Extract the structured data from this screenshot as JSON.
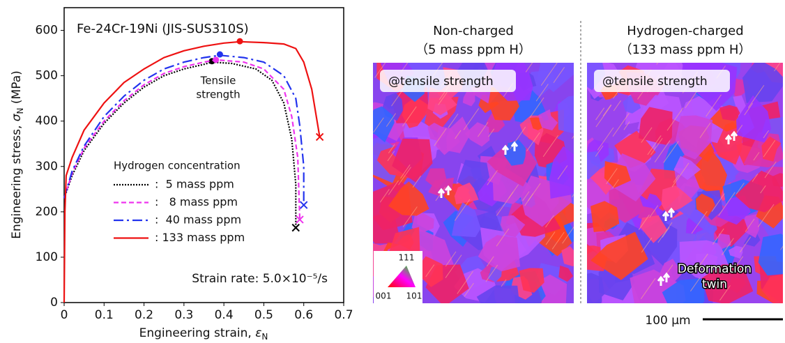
{
  "chart_data": {
    "type": "line",
    "title": "Fe-24Cr-19Ni (JIS-SUS310S)",
    "xlabel": [
      "Engineering strain, ",
      "ε",
      "N"
    ],
    "ylabel": [
      "Engineering stress, ",
      "σ",
      "N",
      " (MPa)"
    ],
    "xlim": [
      0,
      0.7
    ],
    "ylim": [
      0,
      650
    ],
    "xticks": [
      0,
      0.1,
      0.2,
      0.3,
      0.4,
      0.5,
      0.6,
      0.7
    ],
    "yticks": [
      0,
      100,
      200,
      300,
      400,
      500,
      600
    ],
    "legend_title": "Hydrogen concentration",
    "annotations": [
      "Tensile",
      "strength",
      "Strain rate: 5.0×10⁻⁵/s"
    ],
    "series": [
      {
        "name": ":  5 mass ppm",
        "color": "#000000",
        "dash": "2,2",
        "x": [
          0,
          0.02,
          0.05,
          0.1,
          0.15,
          0.2,
          0.25,
          0.3,
          0.35,
          0.37,
          0.42,
          0.48,
          0.52,
          0.55,
          0.57,
          0.58,
          0.58
        ],
        "values": [
          230,
          280,
          335,
          395,
          440,
          475,
          500,
          515,
          525,
          530,
          527,
          515,
          490,
          440,
          360,
          260,
          165
        ],
        "uts": [
          0.37,
          532
        ],
        "fracture": [
          0.58,
          165
        ]
      },
      {
        "name": ":   8 mass ppm",
        "color": "#ee33ee",
        "dash": "7,4",
        "x": [
          0,
          0.02,
          0.05,
          0.1,
          0.15,
          0.2,
          0.25,
          0.3,
          0.35,
          0.38,
          0.45,
          0.5,
          0.55,
          0.57,
          0.585,
          0.59
        ],
        "values": [
          230,
          285,
          340,
          400,
          445,
          480,
          505,
          520,
          530,
          535,
          530,
          515,
          470,
          410,
          320,
          183
        ],
        "uts": [
          0.38,
          535
        ],
        "fracture": [
          0.59,
          183
        ]
      },
      {
        "name": ":  40 mass ppm",
        "color": "#2233ee",
        "dash": "14,5,3,5",
        "x": [
          0,
          0.02,
          0.05,
          0.1,
          0.15,
          0.2,
          0.25,
          0.3,
          0.35,
          0.39,
          0.45,
          0.5,
          0.55,
          0.58,
          0.59,
          0.6,
          0.6
        ],
        "values": [
          230,
          290,
          345,
          410,
          455,
          490,
          515,
          530,
          540,
          545,
          540,
          530,
          500,
          450,
          390,
          300,
          215
        ],
        "uts": [
          0.39,
          547
        ],
        "fracture": [
          0.6,
          215
        ]
      },
      {
        "name": ": 133 mass ppm",
        "color": "#ee1111",
        "dash": "",
        "x": [
          0,
          0.002,
          0.005,
          0.02,
          0.05,
          0.1,
          0.15,
          0.2,
          0.25,
          0.3,
          0.35,
          0.4,
          0.44,
          0.5,
          0.55,
          0.58,
          0.6,
          0.62,
          0.64
        ],
        "values": [
          0,
          200,
          280,
          320,
          380,
          440,
          485,
          515,
          540,
          555,
          565,
          572,
          575,
          573,
          570,
          560,
          530,
          470,
          365
        ],
        "uts": [
          0.44,
          576
        ],
        "fracture": [
          0.64,
          365
        ]
      }
    ]
  },
  "micrographs": [
    {
      "title": "Non-charged",
      "subtitle": "（5 mass ppm H）",
      "label": "@tensile strength"
    },
    {
      "title": "Hydrogen-charged",
      "subtitle": "（133 mass ppm H）",
      "label": "@tensile strength"
    }
  ],
  "orientation_key": [
    "111",
    "001",
    "101"
  ],
  "twin_label": [
    "Deformation",
    "twin"
  ],
  "scale_bar": "100 µm"
}
